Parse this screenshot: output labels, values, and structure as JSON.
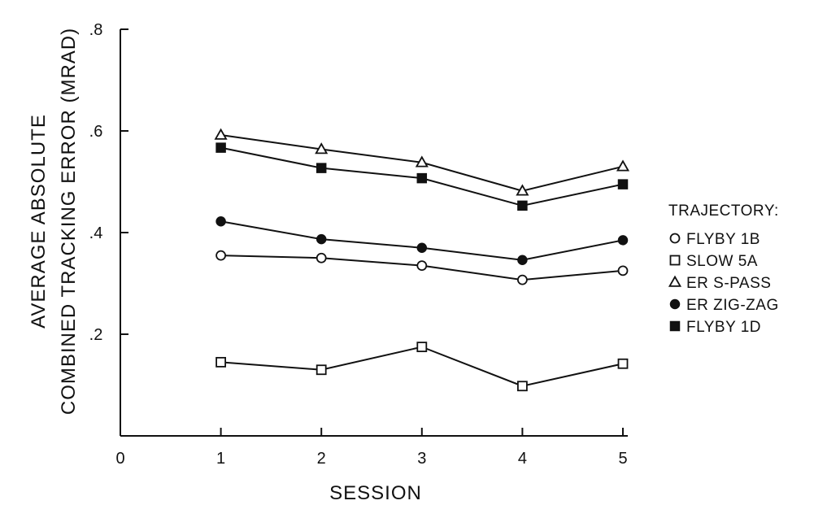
{
  "chart_data": {
    "type": "line",
    "xlabel": "SESSION",
    "ylabel_line1": "AVERAGE ABSOLUTE",
    "ylabel_line2": "COMBINED TRACKING ERROR (MRAD)",
    "x_ticks": [
      "0",
      "1",
      "2",
      "3",
      "4",
      "5"
    ],
    "y_ticks": [
      ".2",
      ".4",
      ".6",
      ".8"
    ],
    "xlim": [
      0,
      5
    ],
    "ylim": [
      0,
      0.8
    ],
    "x": [
      1,
      2,
      3,
      4,
      5
    ],
    "legend_title": "TRAJECTORY:",
    "legend_placement": "right",
    "series": [
      {
        "name": "FLYBY 1B",
        "marker": "circle-open",
        "values": [
          0.355,
          0.35,
          0.335,
          0.307,
          0.325
        ]
      },
      {
        "name": "SLOW 5A",
        "marker": "square-open",
        "values": [
          0.145,
          0.13,
          0.175,
          0.098,
          0.142
        ]
      },
      {
        "name": "ER S-PASS",
        "marker": "triangle-open",
        "values": [
          0.592,
          0.564,
          0.538,
          0.482,
          0.53
        ]
      },
      {
        "name": "ER ZIG-ZAG",
        "marker": "circle-filled",
        "values": [
          0.422,
          0.387,
          0.37,
          0.346,
          0.385
        ]
      },
      {
        "name": "FLYBY 1D",
        "marker": "square-filled",
        "values": [
          0.567,
          0.527,
          0.507,
          0.453,
          0.495
        ]
      }
    ]
  }
}
